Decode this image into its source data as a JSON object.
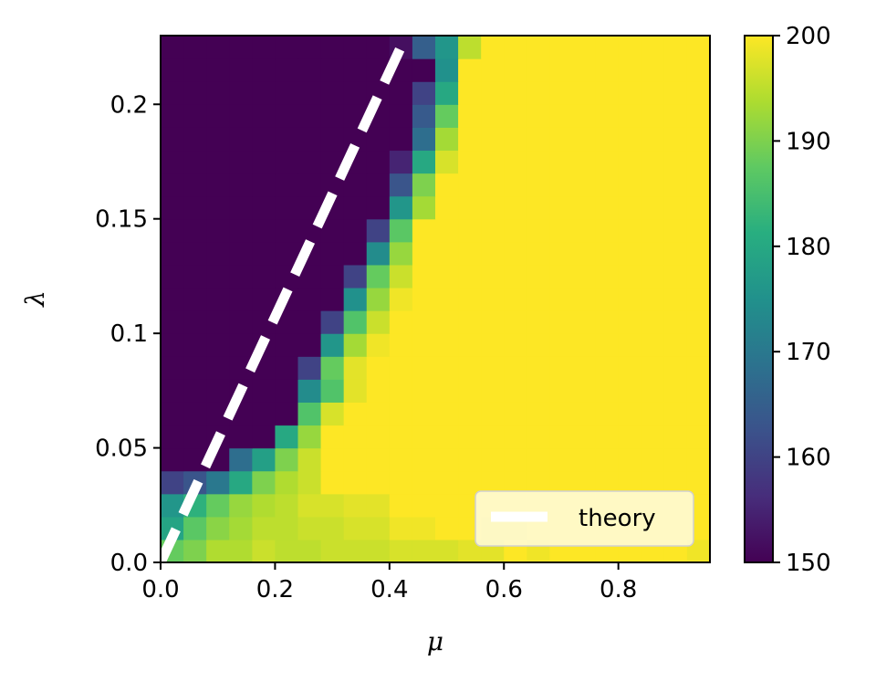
{
  "chart_data": {
    "type": "heatmap",
    "title": "",
    "xlabel": "μ",
    "ylabel": "λ",
    "xlim": [
      0.0,
      0.96
    ],
    "ylim": [
      0.0,
      0.23
    ],
    "x_bins": 24,
    "y_bins": 23,
    "x_ticks": [
      0.0,
      0.2,
      0.4,
      0.6,
      0.8
    ],
    "x_tick_labels": [
      "0.0",
      "0.2",
      "0.4",
      "0.6",
      "0.8"
    ],
    "y_ticks": [
      0.0,
      0.05,
      0.1,
      0.15,
      0.2
    ],
    "y_tick_labels": [
      "0.0",
      "0.05",
      "0.1",
      "0.15",
      "0.2"
    ],
    "colorbar": {
      "colormap": "viridis",
      "min": 150,
      "max": 200,
      "ticks": [
        150,
        160,
        170,
        180,
        190,
        200
      ],
      "tick_labels": [
        "150",
        "160",
        "170",
        "180",
        "190",
        "200"
      ]
    },
    "z_rows_bottom_to_top": [
      [
        188,
        190,
        194,
        194,
        196,
        195,
        195,
        196,
        196,
        196,
        197,
        197,
        197,
        198,
        198,
        200,
        199,
        200,
        200,
        200,
        200,
        200,
        200,
        199
      ],
      [
        179,
        187,
        191,
        193,
        195,
        195,
        196,
        196,
        197,
        197,
        199,
        199,
        200,
        200,
        199,
        199,
        200,
        200,
        200,
        200,
        200,
        200,
        200,
        200
      ],
      [
        176,
        182,
        188,
        192,
        194,
        195,
        197,
        197,
        198,
        198,
        200,
        200,
        200,
        200,
        200,
        200,
        200,
        200,
        200,
        200,
        200,
        200,
        200,
        200
      ],
      [
        160,
        163,
        170,
        180,
        190,
        194,
        196,
        200,
        200,
        200,
        200,
        200,
        200,
        200,
        200,
        200,
        200,
        200,
        200,
        200,
        200,
        200,
        200,
        200
      ],
      [
        150,
        150,
        150,
        168,
        178,
        190,
        196,
        200,
        200,
        200,
        200,
        200,
        200,
        200,
        200,
        200,
        200,
        200,
        200,
        200,
        200,
        200,
        200,
        200
      ],
      [
        150,
        150,
        150,
        150,
        150,
        180,
        192,
        200,
        200,
        200,
        200,
        200,
        200,
        200,
        200,
        200,
        200,
        200,
        200,
        200,
        200,
        200,
        200,
        200
      ],
      [
        150,
        150,
        150,
        150,
        150,
        150,
        186,
        197,
        200,
        200,
        200,
        200,
        200,
        200,
        200,
        200,
        200,
        200,
        200,
        200,
        200,
        200,
        200,
        200
      ],
      [
        150,
        150,
        150,
        150,
        150,
        150,
        174,
        186,
        198,
        200,
        200,
        200,
        200,
        200,
        200,
        200,
        200,
        200,
        200,
        200,
        200,
        200,
        200,
        200
      ],
      [
        150,
        150,
        150,
        150,
        150,
        150,
        160,
        188,
        198,
        200,
        200,
        200,
        200,
        200,
        200,
        200,
        200,
        200,
        200,
        200,
        200,
        200,
        200,
        200
      ],
      [
        150,
        150,
        150,
        150,
        150,
        150,
        150,
        176,
        193,
        199,
        200,
        200,
        200,
        200,
        200,
        200,
        200,
        200,
        200,
        200,
        200,
        200,
        200,
        200
      ],
      [
        150,
        150,
        150,
        150,
        150,
        150,
        150,
        160,
        186,
        196,
        200,
        200,
        200,
        200,
        200,
        200,
        200,
        200,
        200,
        200,
        200,
        200,
        200,
        200
      ],
      [
        150,
        150,
        150,
        150,
        150,
        150,
        150,
        150,
        175,
        192,
        199,
        200,
        200,
        200,
        200,
        200,
        200,
        200,
        200,
        200,
        200,
        200,
        200,
        200
      ],
      [
        150,
        150,
        150,
        150,
        150,
        150,
        150,
        150,
        160,
        188,
        196,
        200,
        200,
        200,
        200,
        200,
        200,
        200,
        200,
        200,
        200,
        200,
        200,
        200
      ],
      [
        150,
        150,
        150,
        150,
        150,
        150,
        150,
        150,
        150,
        174,
        192,
        200,
        200,
        200,
        200,
        200,
        200,
        200,
        200,
        200,
        200,
        200,
        200,
        200
      ],
      [
        150,
        150,
        150,
        150,
        150,
        150,
        150,
        150,
        150,
        160,
        187,
        200,
        200,
        200,
        200,
        200,
        200,
        200,
        200,
        200,
        200,
        200,
        200,
        200
      ],
      [
        150,
        150,
        150,
        150,
        150,
        150,
        150,
        150,
        150,
        150,
        176,
        193,
        200,
        200,
        200,
        200,
        200,
        200,
        200,
        200,
        200,
        200,
        200,
        200
      ],
      [
        150,
        150,
        150,
        150,
        150,
        150,
        150,
        150,
        150,
        150,
        163,
        190,
        200,
        200,
        200,
        200,
        200,
        200,
        200,
        200,
        200,
        200,
        200,
        200
      ],
      [
        150,
        150,
        150,
        150,
        150,
        150,
        150,
        150,
        150,
        150,
        155,
        180,
        197,
        200,
        200,
        200,
        200,
        200,
        200,
        200,
        200,
        200,
        200,
        200
      ],
      [
        150,
        150,
        150,
        150,
        150,
        150,
        150,
        150,
        150,
        150,
        150,
        168,
        193,
        200,
        200,
        200,
        200,
        200,
        200,
        200,
        200,
        200,
        200,
        200
      ],
      [
        150,
        150,
        150,
        150,
        150,
        150,
        150,
        150,
        150,
        150,
        150,
        164,
        188,
        200,
        200,
        200,
        200,
        200,
        200,
        200,
        200,
        200,
        200,
        200
      ],
      [
        150,
        150,
        150,
        150,
        150,
        150,
        150,
        150,
        150,
        150,
        150,
        160,
        180,
        200,
        200,
        200,
        200,
        200,
        200,
        200,
        200,
        200,
        200,
        200
      ],
      [
        150,
        150,
        150,
        150,
        150,
        150,
        150,
        150,
        150,
        150,
        150,
        150,
        175,
        200,
        200,
        200,
        200,
        200,
        200,
        200,
        200,
        200,
        200,
        200
      ],
      [
        150,
        150,
        150,
        150,
        150,
        150,
        150,
        150,
        150,
        150,
        152,
        165,
        176,
        195,
        200,
        200,
        200,
        200,
        200,
        200,
        200,
        200,
        200,
        200
      ]
    ],
    "series": [
      {
        "name": "theory",
        "style": "dashed",
        "color": "#ffffff",
        "x": [
          0.0,
          0.42
        ],
        "y": [
          0.0,
          0.225
        ]
      }
    ],
    "legend": {
      "position": "bottom-right",
      "entries": [
        "theory"
      ]
    },
    "grid": false
  }
}
